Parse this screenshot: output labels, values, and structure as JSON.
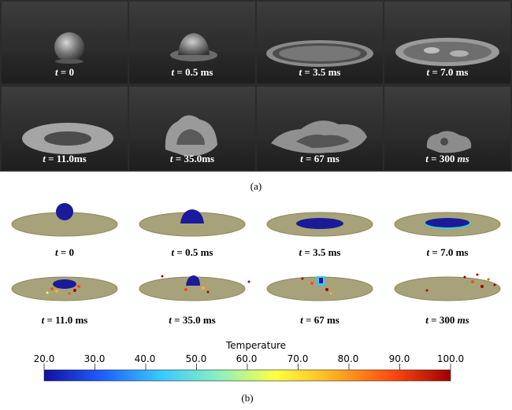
{
  "photo_panels": [
    {
      "t": "t",
      "eq": " = ",
      "value": "0",
      "unit": ""
    },
    {
      "t": "t",
      "eq": " = ",
      "value": "0.5",
      "unit": " ms"
    },
    {
      "t": "t",
      "eq": " = ",
      "value": "3.5",
      "unit": " ms"
    },
    {
      "t": "t",
      "eq": " = ",
      "value": "7.0",
      "unit": " ms"
    },
    {
      "t": "t",
      "eq": " = ",
      "value": "11.0",
      "unit": "ms"
    },
    {
      "t": "t",
      "eq": " = ",
      "value": "35.0",
      "unit": "ms"
    },
    {
      "t": "t",
      "eq": " = ",
      "value": "67",
      "unit": " ms"
    },
    {
      "t": "t",
      "eq": " = ",
      "value": "300",
      "unit": " ms"
    }
  ],
  "caption_a": "(a)",
  "sim_panels": [
    {
      "t": "t",
      "eq": " = ",
      "value": "0",
      "unit": ""
    },
    {
      "t": "t",
      "eq": " = ",
      "value": "0.5",
      "unit": " ms"
    },
    {
      "t": "t",
      "eq": " = ",
      "value": "3.5",
      "unit": " ms"
    },
    {
      "t": "t",
      "eq": " = ",
      "value": "7.0",
      "unit": " ms"
    },
    {
      "t": "t",
      "eq": " = ",
      "value": "11.0",
      "unit": " ms"
    },
    {
      "t": "t",
      "eq": " = ",
      "value": "35.0",
      "unit": " ms"
    },
    {
      "t": "t",
      "eq": " = ",
      "value": "67",
      "unit": " ms"
    },
    {
      "t": "t",
      "eq": " = ",
      "value": "300",
      "unit": " ms"
    }
  ],
  "colorbar": {
    "title": "Temperature",
    "ticks": [
      "20.0",
      "30.0",
      "40.0",
      "50.0",
      "60.0",
      "70.0",
      "80.0",
      "90.0",
      "100.0"
    ],
    "min": 20.0,
    "max": 100.0,
    "colors": [
      "#1010a0",
      "#1f5fff",
      "#38c8ff",
      "#8af0c0",
      "#ffff40",
      "#ffb020",
      "#ff4a10",
      "#a00000"
    ]
  },
  "caption_b": "(b)",
  "colors": {
    "disc": "#a8a27a",
    "disc_edge": "#8d8860",
    "droplet": "#1a1a9a",
    "droplet_dark": "#0c0c6e"
  }
}
